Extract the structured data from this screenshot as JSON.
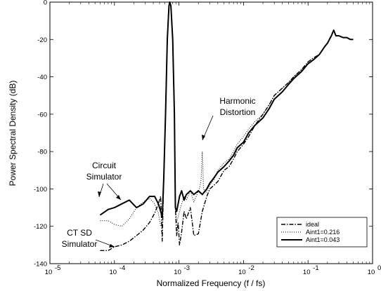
{
  "chart_data": {
    "type": "line",
    "xlabel": "Normalized Frequency (f / fs)",
    "ylabel": "Power Spectral Density (dB)",
    "xscale": "log",
    "xlim": [
      1e-05,
      1
    ],
    "ylim": [
      -140,
      0
    ],
    "x_ticks": [
      {
        "value": 1e-05,
        "base": "10",
        "exp": "-5"
      },
      {
        "value": 0.0001,
        "base": "10",
        "exp": "-4"
      },
      {
        "value": 0.001,
        "base": "10",
        "exp": "-3"
      },
      {
        "value": 0.01,
        "base": "10",
        "exp": "-2"
      },
      {
        "value": 0.1,
        "base": "10",
        "exp": "-1"
      },
      {
        "value": 1,
        "base": "10",
        "exp": "0"
      }
    ],
    "y_ticks": [
      {
        "value": -140,
        "label": "-140"
      },
      {
        "value": -120,
        "label": "-120"
      },
      {
        "value": -100,
        "label": "-100"
      },
      {
        "value": -80,
        "label": "-80"
      },
      {
        "value": -60,
        "label": "-60"
      },
      {
        "value": -40,
        "label": "-40"
      },
      {
        "value": -20,
        "label": "-20"
      },
      {
        "value": 0,
        "label": "0"
      }
    ],
    "grid": false,
    "legend_position": "bottom-right",
    "series": [
      {
        "name": "ideal",
        "style": "dashdot",
        "x": [
          6e-05,
          8e-05,
          0.0001,
          0.00013,
          0.00017,
          0.00022,
          0.00028,
          0.00035,
          0.00042,
          0.00048,
          0.00052,
          0.00055,
          0.00058,
          0.00062,
          0.00066,
          0.0007,
          0.00072,
          0.00075,
          0.0008,
          0.00085,
          0.00088,
          0.00092,
          0.00097,
          0.00102,
          0.0011,
          0.0012,
          0.0013,
          0.0015,
          0.0017,
          0.002,
          0.0023,
          0.0027,
          0.003,
          0.0035,
          0.004,
          0.005,
          0.006,
          0.007,
          0.008,
          0.01,
          0.012,
          0.015,
          0.02,
          0.025,
          0.03,
          0.04,
          0.05,
          0.06,
          0.08,
          0.1,
          0.12,
          0.15,
          0.18,
          0.2,
          0.23,
          0.25,
          0.27,
          0.3,
          0.35,
          0.4,
          0.45,
          0.5
        ],
        "y": [
          -133,
          -133,
          -131,
          -130,
          -128,
          -125,
          -122,
          -118,
          -113,
          -108,
          -104,
          -128,
          -95,
          -60,
          -20,
          -2,
          0,
          -2,
          -20,
          -60,
          -110,
          -125,
          -118,
          -130,
          -123,
          -112,
          -116,
          -110,
          -125,
          -124,
          -112,
          -104,
          -100,
          -98,
          -96,
          -90,
          -88,
          -84,
          -80,
          -76,
          -72,
          -66,
          -60,
          -55,
          -50,
          -46,
          -43,
          -40,
          -36,
          -32,
          -30,
          -28,
          -24,
          -22,
          -18,
          -15,
          -18,
          -18,
          -19,
          -19,
          -20,
          -20
        ]
      },
      {
        "name": "Aint1=0.216",
        "style": "dotted",
        "x": [
          6e-05,
          8e-05,
          0.0001,
          0.00013,
          0.00017,
          0.00022,
          0.00028,
          0.00035,
          0.00042,
          0.00048,
          0.00052,
          0.00055,
          0.00058,
          0.00062,
          0.00066,
          0.0007,
          0.00072,
          0.00075,
          0.0008,
          0.00085,
          0.00088,
          0.00092,
          0.00097,
          0.00102,
          0.0011,
          0.0012,
          0.0013,
          0.0015,
          0.0017,
          0.0019,
          0.0021,
          0.0022,
          0.0023,
          0.0024,
          0.0026,
          0.003,
          0.0035,
          0.004,
          0.005,
          0.006,
          0.007,
          0.008,
          0.01,
          0.012,
          0.015,
          0.02,
          0.025,
          0.03,
          0.04,
          0.05,
          0.06,
          0.08,
          0.1,
          0.12,
          0.15,
          0.18,
          0.2,
          0.23,
          0.25,
          0.27,
          0.3,
          0.35,
          0.4,
          0.45,
          0.5
        ],
        "y": [
          -117,
          -117,
          -119,
          -120,
          -116,
          -110,
          -107,
          -105,
          -108,
          -113,
          -120,
          -120,
          -98,
          -60,
          -20,
          -2,
          0,
          -2,
          -20,
          -60,
          -110,
          -118,
          -115,
          -112,
          -108,
          -104,
          -106,
          -101,
          -107,
          -103,
          -99,
          -95,
          -80,
          -100,
          -102,
          -98,
          -95,
          -90,
          -86,
          -84,
          -80,
          -76,
          -72,
          -68,
          -64,
          -60,
          -55,
          -50,
          -46,
          -43,
          -40,
          -36,
          -32,
          -30,
          -28,
          -24,
          -22,
          -18,
          -15,
          -18,
          -18,
          -19,
          -19,
          -20,
          -20
        ]
      },
      {
        "name": "Aint1=0.043",
        "style": "solid",
        "x": [
          6e-05,
          8e-05,
          0.0001,
          0.00013,
          0.00017,
          0.00022,
          0.00028,
          0.00035,
          0.00042,
          0.00048,
          0.00052,
          0.00055,
          0.00058,
          0.00062,
          0.00066,
          0.0007,
          0.00072,
          0.00075,
          0.0008,
          0.00085,
          0.00088,
          0.00092,
          0.00097,
          0.00102,
          0.0011,
          0.0012,
          0.0013,
          0.0015,
          0.0017,
          0.002,
          0.0023,
          0.0027,
          0.003,
          0.0035,
          0.004,
          0.005,
          0.006,
          0.007,
          0.008,
          0.01,
          0.012,
          0.015,
          0.02,
          0.025,
          0.03,
          0.04,
          0.05,
          0.06,
          0.08,
          0.1,
          0.12,
          0.15,
          0.18,
          0.2,
          0.23,
          0.25,
          0.27,
          0.3,
          0.35,
          0.4,
          0.45,
          0.5
        ],
        "y": [
          -114,
          -111,
          -110,
          -108,
          -106,
          -110,
          -108,
          -104,
          -104,
          -108,
          -112,
          -115,
          -95,
          -60,
          -20,
          -2,
          0,
          -2,
          -20,
          -60,
          -110,
          -112,
          -108,
          -104,
          -101,
          -106,
          -103,
          -101,
          -103,
          -101,
          -103,
          -100,
          -97,
          -94,
          -91,
          -88,
          -85,
          -82,
          -78,
          -75,
          -70,
          -66,
          -62,
          -57,
          -52,
          -48,
          -44,
          -41,
          -37,
          -33,
          -31,
          -28,
          -24,
          -22,
          -18,
          -15,
          -18,
          -18,
          -19,
          -19,
          -20,
          -20
        ]
      }
    ],
    "annotations": {
      "harmonic": {
        "line1": "Harmonic",
        "line2": "Distortion"
      },
      "circuit": {
        "line1": "Circuit",
        "line2": "Simulator"
      },
      "ctsd": {
        "line1": "CT SD",
        "line2": "Simulator"
      }
    }
  }
}
